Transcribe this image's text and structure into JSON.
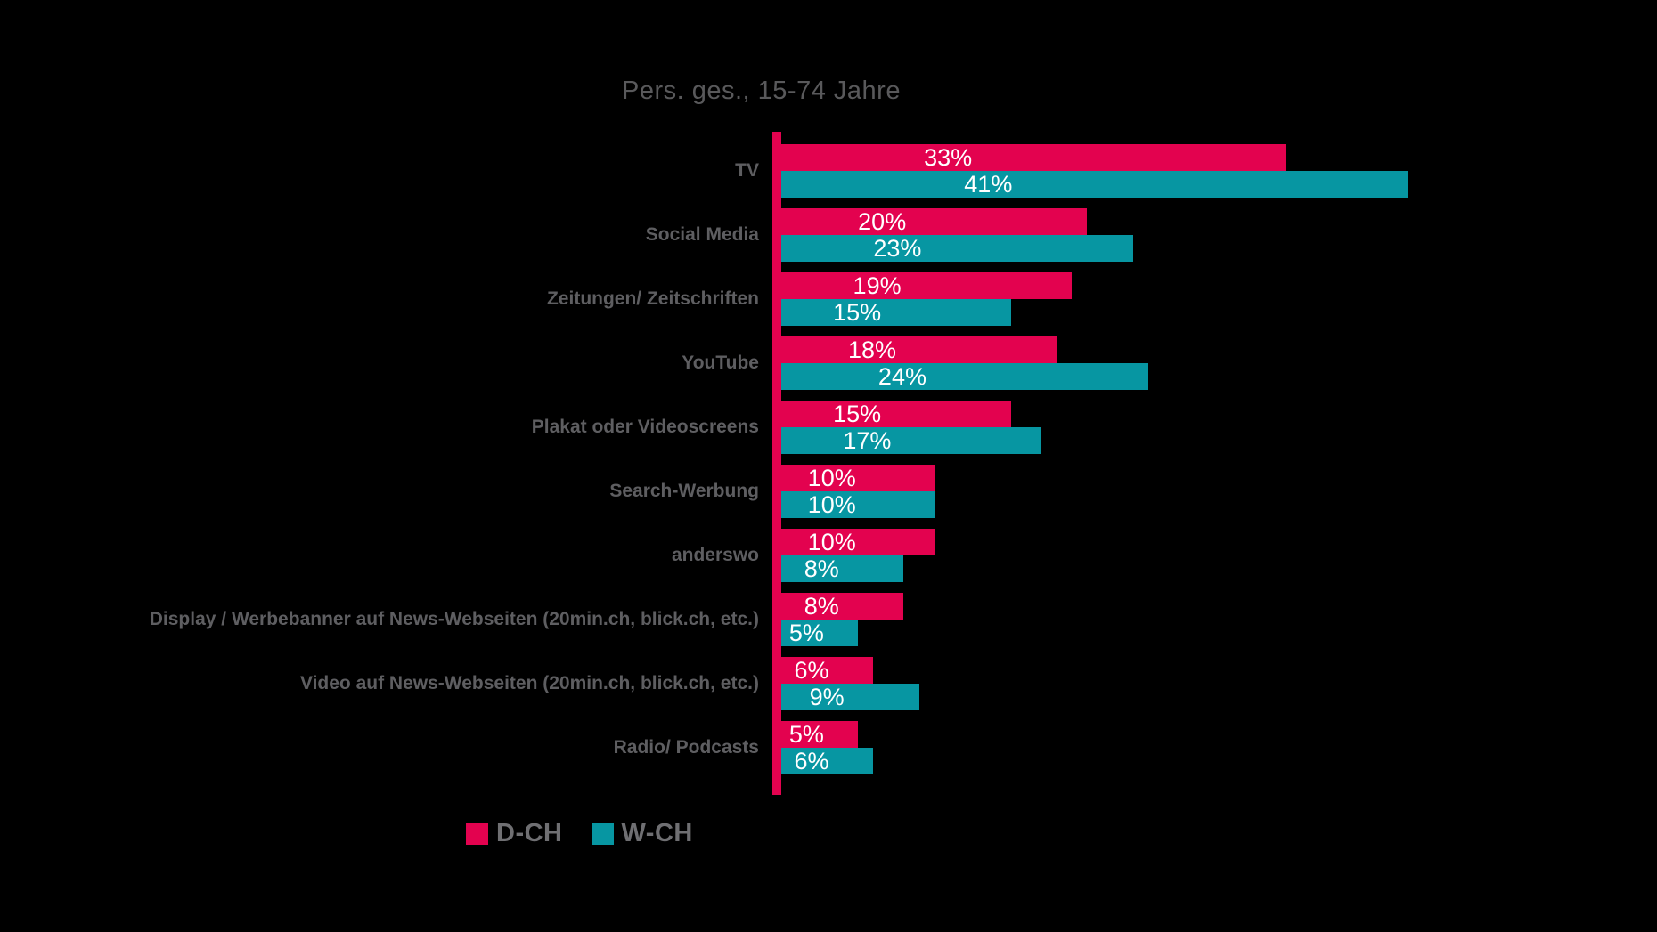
{
  "title": "Pers. ges., 15-74 Jahre",
  "colors": {
    "pink": "#E3024F",
    "teal": "#0796A2",
    "title_text": "#59595B",
    "category_text": "#5E5E61",
    "legend_text": "#6F6F72",
    "value_text": "#FFFFFF",
    "background": "#000000"
  },
  "legend": {
    "items": [
      {
        "label": "D-CH",
        "color": "#E3024F"
      },
      {
        "label": "W-CH",
        "color": "#0796A2"
      }
    ]
  },
  "chart_data": {
    "type": "bar",
    "orientation": "horizontal",
    "title": "Pers. ges., 15-74 Jahre",
    "value_suffix": "%",
    "xlim": [
      0,
      41
    ],
    "grid": false,
    "legend_position": "bottom",
    "categories": [
      "TV",
      "Social Media",
      "Zeitungen/ Zeitschriften",
      "YouTube",
      "Plakat oder Videoscreens",
      "Search-Werbung",
      "anderswo",
      "Display / Werbebanner auf News-Webseiten (20min.ch, blick.ch, etc.)",
      "Video auf News-Webseiten (20min.ch, blick.ch, etc.)",
      "Radio/ Podcasts"
    ],
    "series": [
      {
        "name": "D-CH",
        "color": "#E3024F",
        "values": [
          33,
          20,
          19,
          18,
          15,
          10,
          10,
          8,
          6,
          5
        ]
      },
      {
        "name": "W-CH",
        "color": "#0796A2",
        "values": [
          41,
          23,
          15,
          24,
          17,
          10,
          8,
          5,
          9,
          6
        ]
      }
    ]
  }
}
